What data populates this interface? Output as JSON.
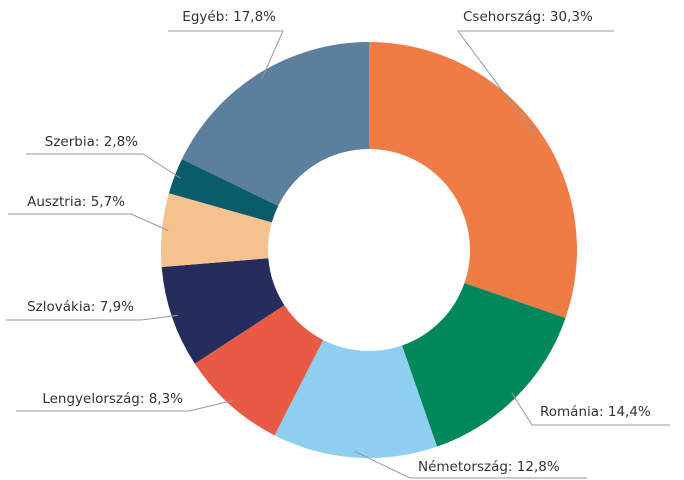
{
  "chart_data": {
    "type": "donut",
    "values": [
      30.3,
      14.4,
      12.8,
      8.3,
      7.9,
      5.7,
      2.8,
      17.8
    ],
    "value_labels": [
      "Csehország: 30,3%",
      "Románia: 14,4%",
      "Németország: 12,8%",
      "Lengyelország: 8,3%",
      "Szlovákia: 7,9%",
      "Ausztria: 5,7%",
      "Szerbia: 2,8%",
      "Egyéb: 17,8%"
    ],
    "colors": [
      "#f07c45",
      "#00875a",
      "#8ecff0",
      "#e95a45",
      "#262d5c",
      "#f5c28f",
      "#0b5c6b",
      "#5b7f9c"
    ]
  }
}
